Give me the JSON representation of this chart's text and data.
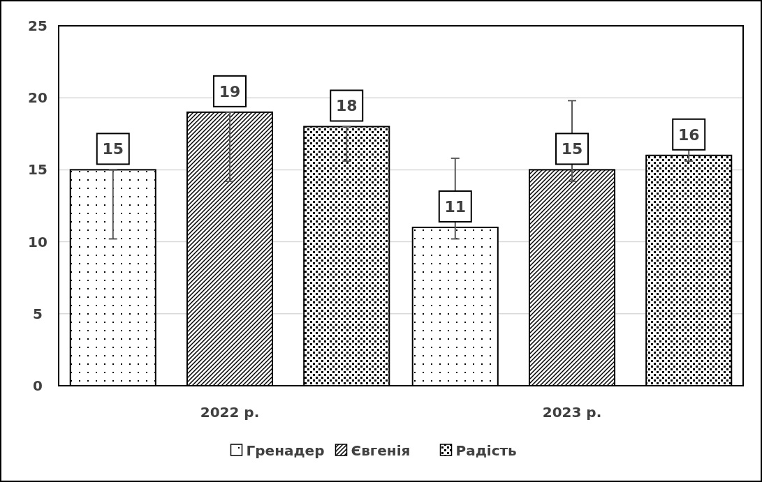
{
  "chart_data": {
    "type": "bar",
    "categories": [
      "2022 р.",
      "2023 р."
    ],
    "series": [
      {
        "name": "Гренадер",
        "color": "#000000",
        "values": [
          15,
          11
        ],
        "errors": [
          [
            10.2,
            15
          ],
          [
            10.2,
            15.8
          ]
        ]
      },
      {
        "name": "Євгенія",
        "color": "#000000",
        "values": [
          19,
          15
        ],
        "errors": [
          [
            14.2,
            19
          ],
          [
            14.2,
            19.8
          ]
        ]
      },
      {
        "name": "Радість",
        "color": "#000000",
        "values": [
          18,
          16
        ],
        "errors": [
          [
            15.6,
            18
          ],
          0.4
        ]
      }
    ],
    "ylim": [
      0,
      25
    ],
    "yticks": [
      0,
      5,
      10,
      15,
      20,
      25
    ],
    "grid": "y",
    "legend": "bottom",
    "data_labels": true
  }
}
